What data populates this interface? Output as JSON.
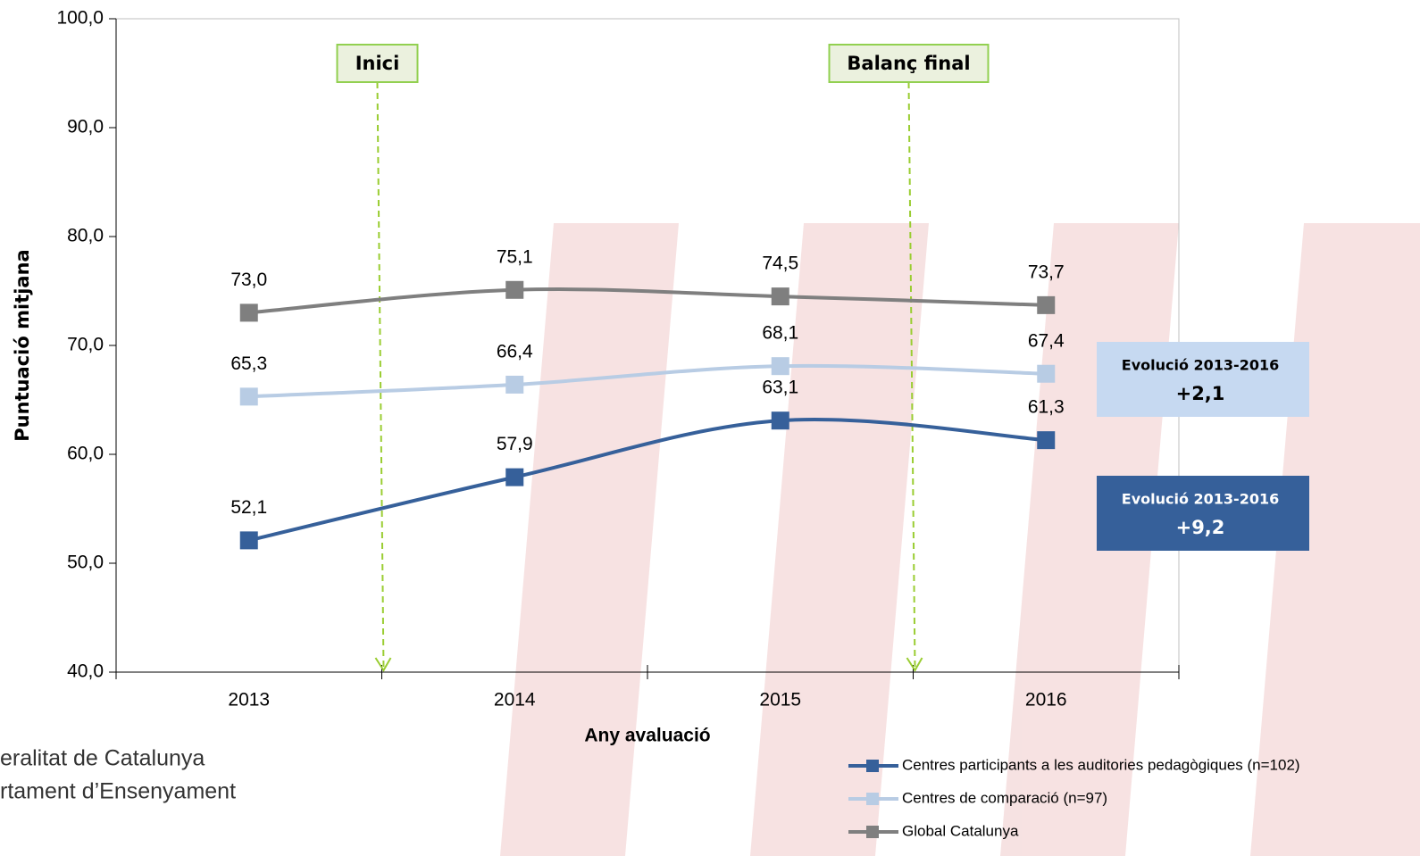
{
  "chart_data": {
    "type": "line",
    "categories": [
      "2013",
      "2014",
      "2015",
      "2016"
    ],
    "series": [
      {
        "name": "Centres participants a les auditories pedagògiques (n=102)",
        "color": "#36609a",
        "values": [
          52.1,
          57.9,
          63.1,
          61.3
        ],
        "value_labels": [
          "52,1",
          "57,9",
          "63,1",
          "61,3"
        ]
      },
      {
        "name": "Centres de comparació (n=97)",
        "color": "#b8cce4",
        "values": [
          65.3,
          66.4,
          68.1,
          67.4
        ],
        "value_labels": [
          "65,3",
          "66,4",
          "68,1",
          "67,4"
        ]
      },
      {
        "name": "Global Catalunya",
        "color": "#7f7f7f",
        "values": [
          73.0,
          75.1,
          74.5,
          73.7
        ],
        "value_labels": [
          "73,0",
          "75,1",
          "74,5",
          "73,7"
        ]
      }
    ],
    "ylim": [
      40,
      100
    ],
    "yticks": [
      {
        "value": 40,
        "label": "40,0"
      },
      {
        "value": 50,
        "label": "50,0"
      },
      {
        "value": 60,
        "label": "60,0"
      },
      {
        "value": 70,
        "label": "70,0"
      },
      {
        "value": 80,
        "label": "80,0"
      },
      {
        "value": 90,
        "label": "90,0"
      },
      {
        "value": 100,
        "label": "100,0"
      }
    ],
    "x_label": "Any avaluació",
    "y_label": "Puntuació mitjana",
    "annotations": [
      "Inici",
      "Balanç final"
    ],
    "evolution_boxes": [
      {
        "title": "Evolució 2013-2016",
        "value": "+2,1"
      },
      {
        "title": "Evolució 2013-2016",
        "value": "+9,2"
      }
    ],
    "logo_lines": [
      "eralitat de Catalunya",
      "rtament d’Ensenyament"
    ],
    "legend": "bottom-right"
  }
}
